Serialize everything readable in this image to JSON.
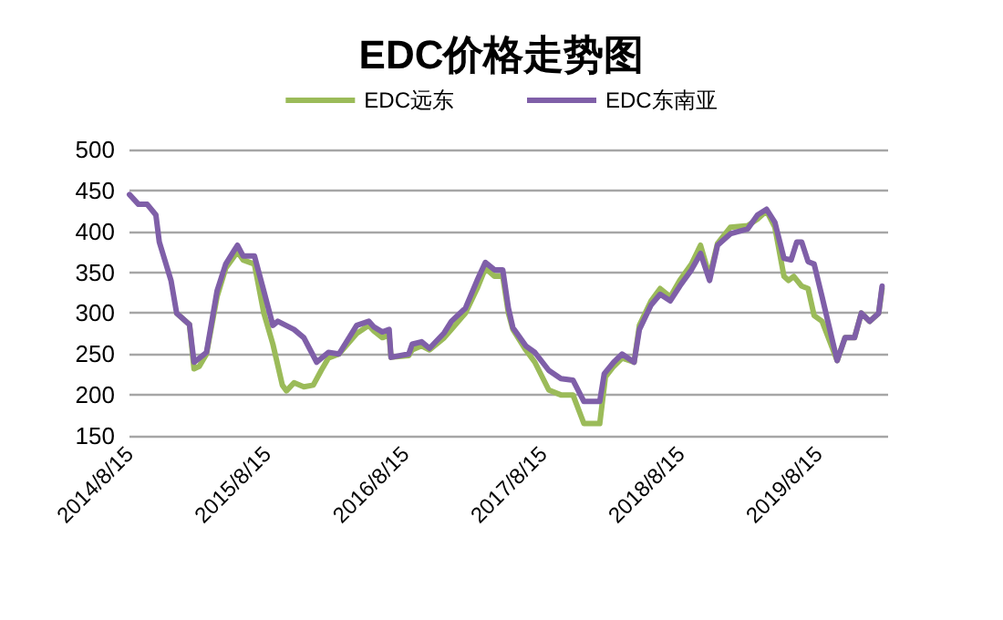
{
  "chart_data": {
    "type": "line",
    "title": "EDC价格走势图",
    "xlim": [
      "2014-08-15",
      "2020-02-15"
    ],
    "xticks": [
      {
        "value": "2014-08-15",
        "label": "2014/8/15"
      },
      {
        "value": "2015-08-15",
        "label": "2015/8/15"
      },
      {
        "value": "2016-08-15",
        "label": "2016/8/15"
      },
      {
        "value": "2017-08-15",
        "label": "2017/8/15"
      },
      {
        "value": "2018-08-15",
        "label": "2018/8/15"
      },
      {
        "value": "2019-08-15",
        "label": "2019/8/15"
      }
    ],
    "ylim": [
      150,
      500
    ],
    "yticks": [
      150,
      200,
      250,
      300,
      350,
      400,
      450,
      500
    ],
    "grid": "y",
    "legend": "top",
    "marker": "none",
    "line_style": "solid",
    "series": [
      {
        "name": "EDC远东",
        "color": "#9bbb59",
        "x": [
          "2014-12-18",
          "2015-01-21",
          "2015-02-02",
          "2015-02-16",
          "2015-03-07",
          "2015-04-04",
          "2015-04-27",
          "2015-05-28",
          "2015-06-12",
          "2015-07-12",
          "2015-08-06",
          "2015-08-30",
          "2015-09-24",
          "2015-10-05",
          "2015-10-25",
          "2015-11-20",
          "2015-12-15",
          "2016-01-05",
          "2016-01-24",
          "2016-02-21",
          "2016-04-08",
          "2016-05-10",
          "2016-05-24",
          "2016-06-15",
          "2016-07-03",
          "2016-07-08",
          "2016-08-24",
          "2016-09-02",
          "2016-09-27",
          "2016-10-18",
          "2016-11-26",
          "2016-12-15",
          "2017-01-21",
          "2017-02-21",
          "2017-03-15",
          "2017-04-08",
          "2017-04-30",
          "2017-05-15",
          "2017-05-27",
          "2017-06-30",
          "2017-07-24",
          "2017-08-30",
          "2017-10-01",
          "2017-11-02",
          "2017-12-01",
          "2018-01-12",
          "2018-01-27",
          "2018-02-18",
          "2018-03-12",
          "2018-04-13",
          "2018-04-27",
          "2018-05-28",
          "2018-06-21",
          "2018-07-18",
          "2018-08-12",
          "2018-09-12",
          "2018-10-06",
          "2018-10-30",
          "2018-11-20",
          "2018-12-24",
          "2019-02-08",
          "2019-03-06",
          "2019-03-30",
          "2019-04-21",
          "2019-05-15",
          "2019-05-27",
          "2019-06-10",
          "2019-07-01",
          "2019-07-18",
          "2019-08-03",
          "2019-08-24",
          "2019-10-03",
          "2019-10-24",
          "2019-11-18",
          "2019-12-06",
          "2019-12-28",
          "2020-01-21",
          "2020-01-30"
        ],
        "values": [
          300,
          286,
          232,
          235,
          250,
          320,
          355,
          375,
          365,
          360,
          300,
          262,
          212,
          205,
          215,
          210,
          212,
          230,
          245,
          250,
          275,
          285,
          278,
          270,
          273,
          246,
          248,
          255,
          260,
          255,
          270,
          280,
          300,
          330,
          355,
          345,
          345,
          300,
          280,
          255,
          240,
          206,
          200,
          200,
          165,
          165,
          222,
          235,
          245,
          240,
          285,
          315,
          330,
          320,
          340,
          360,
          383,
          345,
          385,
          405,
          407,
          415,
          425,
          405,
          345,
          340,
          345,
          333,
          330,
          297,
          290,
          242,
          270,
          270,
          300,
          290,
          300,
          330
        ]
      },
      {
        "name": "EDC东南亚",
        "color": "#7f5fa8",
        "x": [
          "2014-08-15",
          "2014-09-08",
          "2014-10-01",
          "2014-10-24",
          "2014-11-02",
          "2014-12-03",
          "2014-12-18",
          "2015-01-21",
          "2015-02-02",
          "2015-02-16",
          "2015-03-07",
          "2015-04-04",
          "2015-04-27",
          "2015-05-28",
          "2015-06-12",
          "2015-07-12",
          "2015-08-06",
          "2015-08-30",
          "2015-09-12",
          "2015-10-25",
          "2015-11-20",
          "2015-12-24",
          "2016-01-24",
          "2016-02-21",
          "2016-04-08",
          "2016-05-10",
          "2016-05-24",
          "2016-06-15",
          "2016-07-03",
          "2016-07-08",
          "2016-08-24",
          "2016-09-02",
          "2016-09-27",
          "2016-10-18",
          "2016-11-26",
          "2016-12-15",
          "2017-01-21",
          "2017-02-21",
          "2017-03-15",
          "2017-04-08",
          "2017-04-30",
          "2017-05-15",
          "2017-05-27",
          "2017-06-30",
          "2017-07-24",
          "2017-08-30",
          "2017-10-01",
          "2017-11-02",
          "2017-12-01",
          "2018-01-12",
          "2018-01-24",
          "2018-02-18",
          "2018-03-12",
          "2018-04-13",
          "2018-04-27",
          "2018-05-28",
          "2018-06-21",
          "2018-07-18",
          "2018-08-12",
          "2018-09-12",
          "2018-10-06",
          "2018-10-30",
          "2018-11-20",
          "2018-12-24",
          "2019-02-08",
          "2019-03-06",
          "2019-03-30",
          "2019-04-21",
          "2019-05-15",
          "2019-06-03",
          "2019-06-18",
          "2019-07-01",
          "2019-07-18",
          "2019-08-03",
          "2019-08-24",
          "2019-10-03",
          "2019-10-24",
          "2019-11-18",
          "2019-12-06",
          "2019-12-28",
          "2020-01-21",
          "2020-01-30"
        ],
        "values": [
          445,
          433,
          433,
          420,
          387,
          340,
          300,
          286,
          240,
          245,
          252,
          327,
          360,
          383,
          370,
          370,
          327,
          285,
          290,
          280,
          270,
          240,
          252,
          250,
          285,
          290,
          283,
          277,
          280,
          246,
          250,
          262,
          265,
          257,
          276,
          290,
          306,
          340,
          362,
          353,
          353,
          306,
          282,
          260,
          252,
          230,
          220,
          218,
          192,
          192,
          226,
          240,
          250,
          240,
          280,
          310,
          323,
          315,
          333,
          353,
          373,
          340,
          383,
          397,
          403,
          420,
          427,
          411,
          367,
          365,
          387,
          387,
          363,
          360,
          320,
          242,
          270,
          270,
          300,
          290,
          300,
          333
        ]
      }
    ]
  }
}
